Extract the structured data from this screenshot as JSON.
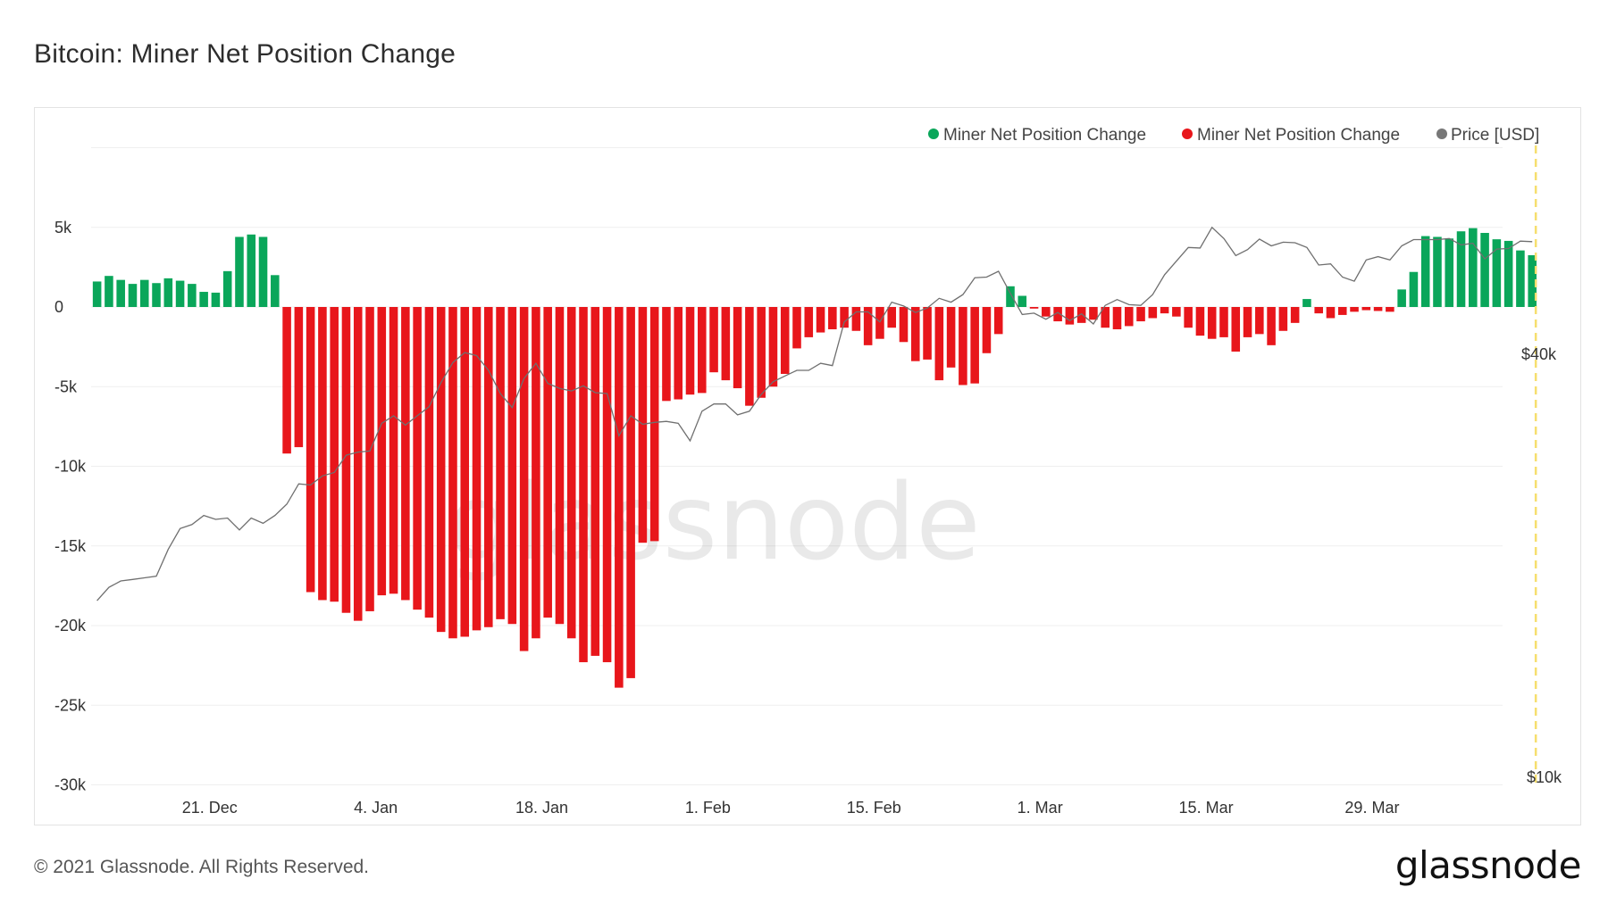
{
  "title": "Bitcoin: Miner Net Position Change",
  "footer": {
    "copyright": "© 2021 Glassnode. All Rights Reserved.",
    "logo": "glassnode"
  },
  "watermark": "glassnode",
  "colors": {
    "positive": "#0aa65a",
    "negative": "#e8161b",
    "price": "#6f6f6f",
    "grid": "#efefef",
    "marker": "#f6df6e"
  },
  "chart_data": {
    "type": "bar",
    "title": "Bitcoin: Miner Net Position Change",
    "legend_position": "top-right",
    "grid": true,
    "legend": [
      {
        "label": "Miner Net Position Change",
        "color": "#0aa65a"
      },
      {
        "label": "Miner Net Position Change",
        "color": "#e8161b"
      },
      {
        "label": "Price [USD]",
        "color": "#777777"
      }
    ],
    "x_ticks": [
      "21. Dec",
      "4. Jan",
      "18. Jan",
      "1. Feb",
      "15. Feb",
      "1. Mar",
      "15. Mar",
      "29. Mar"
    ],
    "y_ticks": [
      "5k",
      "0",
      "-5k",
      "-10k",
      "-15k",
      "-20k",
      "-25k",
      "-30k"
    ],
    "y_right_ticks": [
      "$40k",
      "$10k"
    ],
    "ylim": [
      -30000,
      10000
    ],
    "x_start": "2020-12-11",
    "x_end": "2021-04-09",
    "series": [
      {
        "name": "Miner Net Position Change",
        "start_date": "2020-12-11",
        "values": [
          1600,
          1950,
          1700,
          1450,
          1700,
          1500,
          1800,
          1650,
          1450,
          950,
          900,
          2250,
          4400,
          4550,
          4400,
          2000,
          -9200,
          -8800,
          -17900,
          -18400,
          -18500,
          -19200,
          -19700,
          -19100,
          -18100,
          -18000,
          -18400,
          -19000,
          -19500,
          -20400,
          -20800,
          -20700,
          -20300,
          -20100,
          -19600,
          -19900,
          -21600,
          -20800,
          -19500,
          -19900,
          -20800,
          -22300,
          -21900,
          -22300,
          -23900,
          -23300,
          -14800,
          -14700,
          -5900,
          -5800,
          -5500,
          -5400,
          -4100,
          -4600,
          -5100,
          -6200,
          -5700,
          -5000,
          -4200,
          -2600,
          -1900,
          -1600,
          -1400,
          -1300,
          -1500,
          -2400,
          -2000,
          -1300,
          -2200,
          -3400,
          -3300,
          -4600,
          -3800,
          -4900,
          -4800,
          -2900,
          -1700,
          1300,
          700,
          -100,
          -600,
          -900,
          -1100,
          -1000,
          -800,
          -1300,
          -1400,
          -1200,
          -900,
          -700,
          -400,
          -600,
          -1300,
          -1800,
          -2000,
          -1900,
          -2800,
          -1900,
          -1700,
          -2400,
          -1500,
          -1000,
          500,
          -400,
          -700,
          -500,
          -300,
          -200,
          -250,
          -300,
          1100,
          2200,
          4450,
          4400,
          4300,
          4750,
          4950,
          4650,
          4250,
          4150,
          3550,
          3250
        ]
      },
      {
        "name": "Price [USD]",
        "start_date": "2020-12-11",
        "values": [
          18000,
          18800,
          19200,
          19300,
          19400,
          19500,
          21300,
          22800,
          23100,
          23800,
          23500,
          23600,
          22700,
          23600,
          23200,
          23800,
          24700,
          26400,
          26300,
          27100,
          27400,
          29000,
          29300,
          29400,
          32200,
          33000,
          32000,
          33000,
          34000,
          36800,
          39300,
          40600,
          40200,
          38300,
          35500,
          33900,
          37300,
          39200,
          36700,
          36100,
          35800,
          36400,
          35600,
          35500,
          30900,
          33000,
          32100,
          32300,
          32400,
          32200,
          30400,
          33500,
          34300,
          34300,
          33100,
          33500,
          35400,
          36900,
          37600,
          38300,
          38300,
          39200,
          38900,
          44900,
          46400,
          46400,
          44900,
          47900,
          47300,
          46300,
          47000,
          48500,
          47900,
          49100,
          51900,
          52000,
          53000,
          49300,
          46000,
          46200,
          45300,
          46300,
          45100,
          46100,
          44600,
          47400,
          48300,
          47500,
          47400,
          49100,
          52400,
          54800,
          57300,
          57200,
          61200,
          59000,
          55800,
          56900,
          58900,
          57600,
          58300,
          58200,
          57300,
          54100,
          54300,
          52000,
          51300,
          55000,
          55600,
          55000,
          57600,
          58800,
          58800,
          58800,
          59000,
          57800,
          58100,
          55200,
          57000,
          57100,
          58500,
          58400
        ]
      }
    ]
  }
}
